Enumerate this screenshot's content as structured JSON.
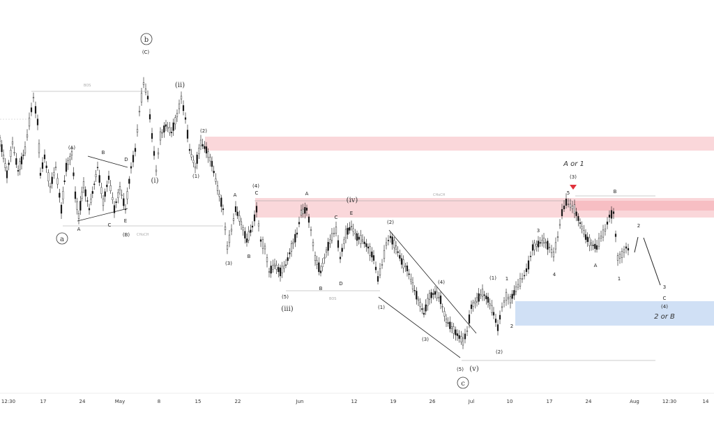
{
  "chart_data": {
    "type": "candlestick",
    "title": "",
    "xlabel": "",
    "ylabel": "",
    "grid": false,
    "x_ticks": [
      "12:30",
      "17",
      "24",
      "May",
      "8",
      "15",
      "22",
      "Jun",
      "12",
      "19",
      "26",
      "Jul",
      "10",
      "17",
      "24",
      "Aug",
      "12:30",
      "14"
    ],
    "zones": [
      {
        "name": "upper-supply-zone",
        "color": "#f4a6ac"
      },
      {
        "name": "mid-supply-zone",
        "color": "#f4a6ac"
      },
      {
        "name": "demand-zone",
        "color": "#a9c6ec"
      }
    ],
    "horizontal_levels": [
      {
        "label": "BOS"
      },
      {
        "label": "CHoCH"
      },
      {
        "label": "CHoCH"
      },
      {
        "label": "BOS"
      }
    ],
    "wave_labels": {
      "circled": [
        "b",
        "a",
        "c"
      ],
      "roman": [
        "(ii)",
        "(i)",
        "(iv)",
        "(iii)",
        "(v)"
      ],
      "intermediate": [
        "(C)",
        "(A)",
        "(B)",
        "(2)",
        "(1)",
        "(3)",
        "(4)",
        "(5)"
      ],
      "letters": [
        "A",
        "B",
        "C",
        "D",
        "E"
      ],
      "digits": [
        "1",
        "2",
        "3",
        "4",
        "5"
      ]
    },
    "annotations": [
      "A or 1",
      "2 or B"
    ]
  },
  "colors": {
    "candle": "#111111",
    "supply": "#f4a6ac",
    "demand": "#a9c6ec",
    "marker": "#e0323c"
  }
}
